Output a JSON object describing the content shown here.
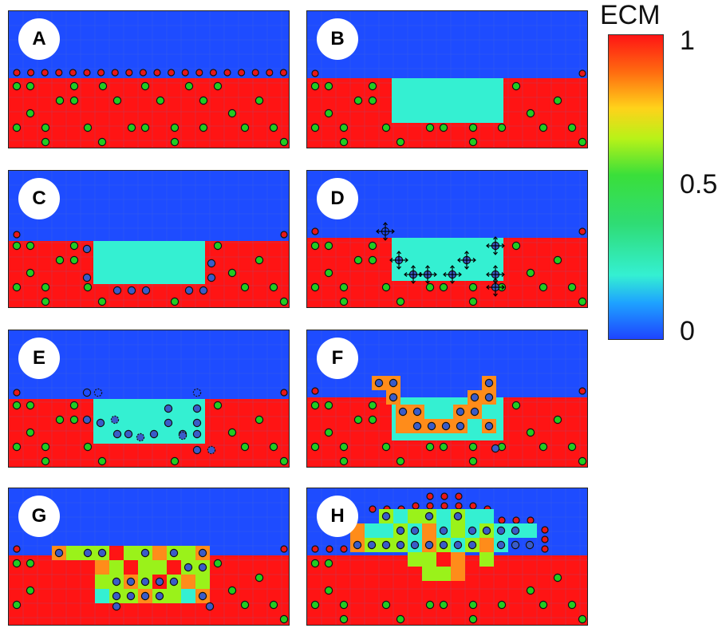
{
  "colorbar": {
    "title": "ECM",
    "tick_max": "1",
    "tick_mid": "0.5",
    "tick_min": "0",
    "colors": [
      "#ff1414",
      "#ff6a10",
      "#ffd21a",
      "#b8f218",
      "#3adf3a",
      "#2fdc74",
      "#34f0d2",
      "#1ea3ff",
      "#1e44ff"
    ]
  },
  "palette": {
    "fluid": "#1e4cff",
    "ecm_full": "#ff1414",
    "degraded": "#34f0d2",
    "orange": "#ff8c1a",
    "light_green": "#9af21a",
    "healthy_cell": "#22cc22",
    "tip_cell": "#e81818",
    "migrating_cell": "#3a5cc8"
  },
  "panels": [
    {
      "label": "A"
    },
    {
      "label": "B"
    },
    {
      "label": "C"
    },
    {
      "label": "D"
    },
    {
      "label": "E"
    },
    {
      "label": "F"
    },
    {
      "label": "G"
    },
    {
      "label": "H"
    }
  ]
}
